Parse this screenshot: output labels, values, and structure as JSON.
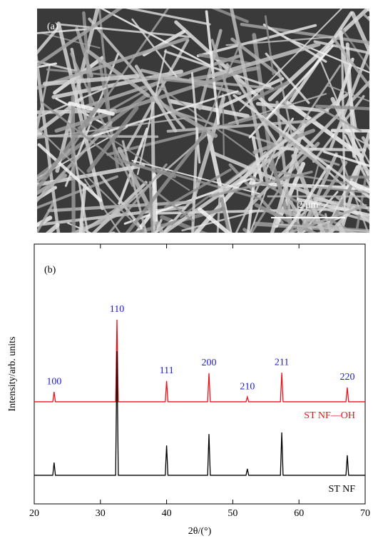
{
  "image_panel": {
    "label": "(a)",
    "scale_bar": "2 μm"
  },
  "chart_data": {
    "type": "line",
    "panel_label": "(b)",
    "xlabel": "2θ/(°)",
    "ylabel": "Intensity/arb. units",
    "x": [
      20,
      22.8,
      23,
      23.2,
      32.3,
      32.5,
      32.7,
      39.8,
      40,
      40.2,
      46.2,
      46.4,
      46.6,
      52,
      52.2,
      52.4,
      57.2,
      57.4,
      57.6,
      67.1,
      67.3,
      67.5,
      70
    ],
    "series": [
      {
        "name": "ST NF—OH",
        "color": "#e8141c",
        "values": [
          39.3,
          39.3,
          43.1,
          39.3,
          39.3,
          70.9,
          39.3,
          39.3,
          47.3,
          39.3,
          39.3,
          50.3,
          39.3,
          39.3,
          41.2,
          39.3,
          39.3,
          50.5,
          39.3,
          39.3,
          44.8,
          39.3,
          39.3
        ]
      },
      {
        "name": "ST NF",
        "color": "#000000",
        "values": [
          11.0,
          11.0,
          15.9,
          11.0,
          11.0,
          58.8,
          11.0,
          11.0,
          22.5,
          11.0,
          11.0,
          26.9,
          11.0,
          11.0,
          13.5,
          11.0,
          11.0,
          27.5,
          11.0,
          11.0,
          18.7,
          11.0,
          11.0
        ]
      }
    ],
    "peak_labels": [
      "100",
      "110",
      "111",
      "200",
      "210",
      "211",
      "220"
    ],
    "peak_label_color": "#1a1adc",
    "xlim": [
      20,
      70
    ],
    "xticks": [
      20,
      30,
      40,
      50,
      60,
      70
    ],
    "ylim": [
      0,
      100
    ]
  }
}
